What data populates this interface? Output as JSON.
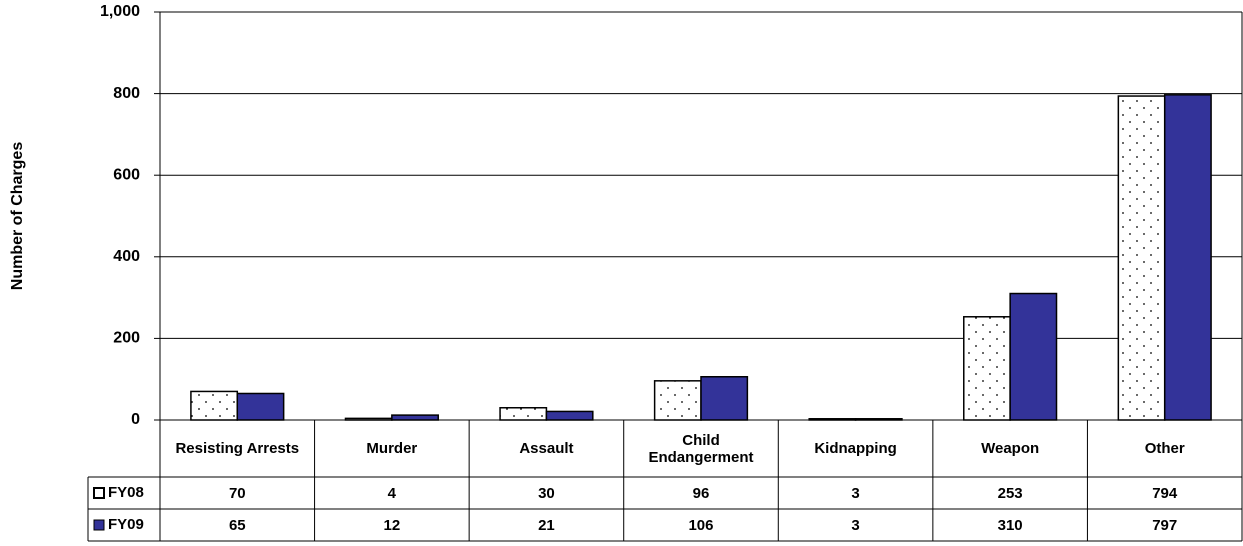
{
  "chart_data": {
    "type": "bar",
    "y_label": "Number of Charges",
    "categories": [
      "Resisting Arrests",
      "Murder",
      "Assault",
      "Child Endangerment",
      "Kidnapping",
      "Weapon",
      "Other"
    ],
    "series": [
      {
        "name": "FY08",
        "color": "#ffffff",
        "pattern": "dotted",
        "values": [
          70,
          4,
          30,
          96,
          3,
          253,
          794
        ]
      },
      {
        "name": "FY09",
        "color": "#333399",
        "values": [
          65,
          12,
          21,
          106,
          3,
          310,
          797
        ]
      }
    ],
    "ylim": [
      0,
      1000
    ],
    "yticks": [
      0,
      200,
      400,
      600,
      800,
      {
        "value": 1000,
        "label": "1,000"
      }
    ],
    "grid": true,
    "data_table": true
  }
}
